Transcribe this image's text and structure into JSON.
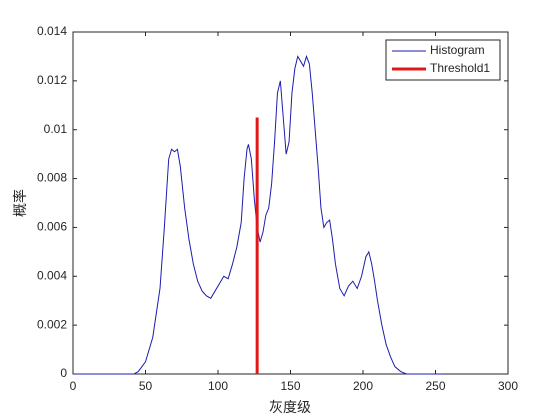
{
  "chart_data": {
    "type": "line",
    "xlabel": "灰度级",
    "ylabel": "概率",
    "xlim": [
      0,
      300
    ],
    "xticks": [
      0,
      50,
      100,
      150,
      200,
      250,
      300
    ],
    "ylim": [
      0,
      0.014
    ],
    "yticks": [
      0,
      0.002,
      0.004,
      0.006,
      0.008,
      0.01,
      0.012,
      0.014
    ],
    "legend": "upper right",
    "grid": false,
    "series": [
      {
        "name": "Histogram",
        "color": "#1c1cb0",
        "x": [
          0,
          42,
          45,
          50,
          55,
          60,
          63,
          66,
          68,
          70,
          72,
          74,
          77,
          80,
          83,
          86,
          89,
          92,
          95,
          98,
          101,
          104,
          107,
          110,
          113,
          116,
          118,
          120,
          121,
          123,
          125,
          127,
          129,
          131,
          133,
          135,
          137,
          139,
          141,
          143,
          145,
          147,
          149,
          151,
          153,
          155,
          157,
          159,
          161,
          163,
          165,
          167,
          169,
          171,
          173,
          175,
          177,
          179,
          181,
          184,
          187,
          190,
          193,
          196,
          199,
          202,
          204,
          206,
          208,
          210,
          213,
          216,
          219,
          222,
          226,
          230,
          255
        ],
        "values": [
          0,
          0,
          0.0001,
          0.0005,
          0.0015,
          0.0035,
          0.006,
          0.0088,
          0.0092,
          0.0091,
          0.0092,
          0.0085,
          0.0068,
          0.0055,
          0.0045,
          0.0038,
          0.0034,
          0.0032,
          0.0031,
          0.0034,
          0.0037,
          0.004,
          0.0039,
          0.0045,
          0.0052,
          0.0062,
          0.008,
          0.0092,
          0.0094,
          0.0088,
          0.0072,
          0.006,
          0.0054,
          0.0058,
          0.0065,
          0.0068,
          0.0078,
          0.0095,
          0.0115,
          0.012,
          0.0105,
          0.009,
          0.0095,
          0.0115,
          0.0125,
          0.013,
          0.0128,
          0.0126,
          0.013,
          0.0127,
          0.0115,
          0.01,
          0.0085,
          0.0068,
          0.006,
          0.0062,
          0.0063,
          0.0055,
          0.0045,
          0.0035,
          0.0032,
          0.0036,
          0.0038,
          0.0035,
          0.004,
          0.0048,
          0.005,
          0.0045,
          0.0038,
          0.003,
          0.002,
          0.0012,
          0.0007,
          0.0003,
          0.0001,
          0,
          0
        ]
      },
      {
        "name": "Threshold1",
        "color": "#e01818",
        "x": [
          127,
          127
        ],
        "values": [
          0,
          0.0105
        ]
      }
    ]
  }
}
